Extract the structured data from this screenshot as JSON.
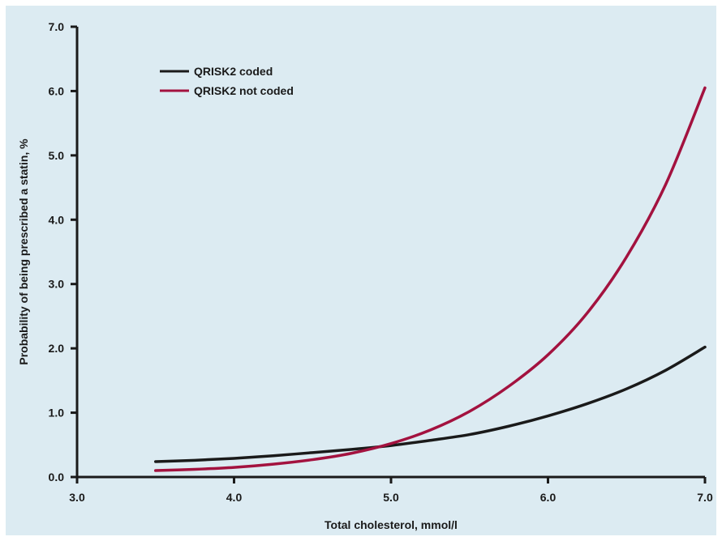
{
  "chart_data": {
    "type": "line",
    "title": "",
    "xlabel": "Total cholesterol, mmol/l",
    "ylabel": "Probability of being prescribed a statin, %",
    "xlim": [
      3.0,
      7.0
    ],
    "ylim": [
      0.0,
      7.0
    ],
    "x_ticks": [
      "3.0",
      "4.0",
      "5.0",
      "6.0",
      "7.0"
    ],
    "y_ticks": [
      "0.0",
      "1.0",
      "2.0",
      "3.0",
      "4.0",
      "5.0",
      "6.0",
      "7.0"
    ],
    "grid": false,
    "legend_position": "top-left",
    "series": [
      {
        "name": "QRISK2 coded",
        "color": "#1a1a1a",
        "x": [
          3.5,
          3.75,
          4.0,
          4.25,
          4.5,
          4.75,
          5.0,
          5.25,
          5.5,
          5.75,
          6.0,
          6.25,
          6.5,
          6.75,
          7.0
        ],
        "y": [
          0.24,
          0.26,
          0.29,
          0.33,
          0.38,
          0.43,
          0.49,
          0.57,
          0.66,
          0.79,
          0.95,
          1.14,
          1.37,
          1.66,
          2.02
        ]
      },
      {
        "name": "QRISK2 not coded",
        "color": "#a3123f",
        "x": [
          3.5,
          3.75,
          4.0,
          4.25,
          4.5,
          4.75,
          5.0,
          5.25,
          5.5,
          5.75,
          6.0,
          6.25,
          6.5,
          6.75,
          7.0
        ],
        "y": [
          0.1,
          0.12,
          0.15,
          0.2,
          0.27,
          0.37,
          0.52,
          0.73,
          1.02,
          1.41,
          1.9,
          2.55,
          3.42,
          4.55,
          6.05
        ]
      }
    ]
  }
}
